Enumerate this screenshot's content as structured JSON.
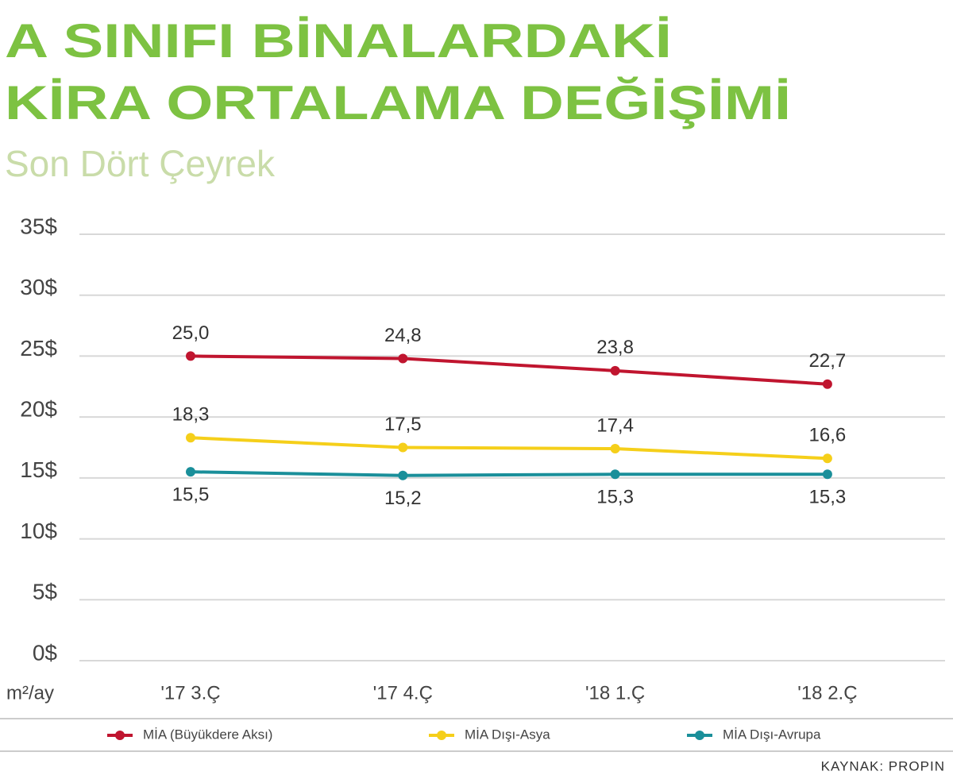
{
  "chart_data": {
    "type": "line",
    "title_lines": [
      "A SINIFI BİNALARDAKİ",
      "KİRA ORTALAMA DEĞİŞİMİ"
    ],
    "subtitle": "Son Dört Çeyrek",
    "unit_label": "m²/ay",
    "source": "KAYNAK: PROPIN",
    "categories": [
      "'17 3.Ç",
      "'17 4.Ç",
      "'18 1.Ç",
      "'18 2.Ç"
    ],
    "series": [
      {
        "name": "MİA (Büyükdere Aksı)",
        "color": "#c0152f",
        "label_position": "above",
        "values": [
          25.0,
          24.8,
          23.8,
          22.7
        ],
        "value_labels": [
          "25,0",
          "24,8",
          "23,8",
          "22,7"
        ]
      },
      {
        "name": "MİA Dışı-Asya",
        "color": "#f5cf1a",
        "label_position": "above",
        "values": [
          18.3,
          17.5,
          17.4,
          16.6
        ],
        "value_labels": [
          "18,3",
          "17,5",
          "17,4",
          "16,6"
        ]
      },
      {
        "name": "MİA Dışı-Avrupa",
        "color": "#1a8f9a",
        "label_position": "below",
        "values": [
          15.5,
          15.2,
          15.3,
          15.3
        ],
        "value_labels": [
          "15,5",
          "15,2",
          "15,3",
          "15,3"
        ]
      }
    ],
    "ylim": [
      0,
      35
    ],
    "yticks": [
      {
        "value": 0,
        "label": "0$"
      },
      {
        "value": 5,
        "label": "5$"
      },
      {
        "value": 10,
        "label": "10$"
      },
      {
        "value": 15,
        "label": "15$"
      },
      {
        "value": 20,
        "label": "20$"
      },
      {
        "value": 25,
        "label": "25$"
      },
      {
        "value": 30,
        "label": "30$"
      },
      {
        "value": 35,
        "label": "35$"
      }
    ],
    "grid": true,
    "legend": "bottom"
  }
}
